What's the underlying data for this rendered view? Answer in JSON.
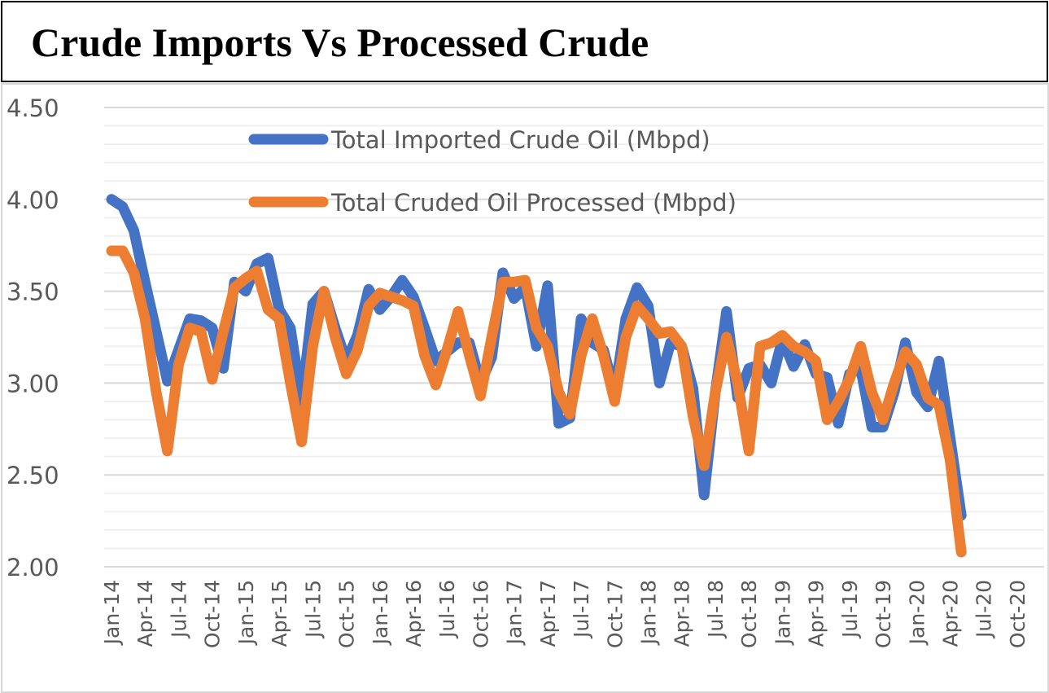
{
  "title": "Crude Imports Vs Processed Crude",
  "chart_data": {
    "type": "line",
    "title": "Crude Imports Vs Processed Crude",
    "xlabel": "",
    "ylabel": "",
    "ylim": [
      2.0,
      4.5
    ],
    "y_major_step": 0.5,
    "y_minor_step": 0.1,
    "y_ticks": [
      "2.00",
      "2.50",
      "3.00",
      "3.50",
      "4.00",
      "4.50"
    ],
    "x_ticks": [
      "Jan-14",
      "Apr-14",
      "Jul-14",
      "Oct-14",
      "Jan-15",
      "Apr-15",
      "Jul-15",
      "Oct-15",
      "Jan-16",
      "Apr-16",
      "Jul-16",
      "Oct-16",
      "Jan-17",
      "Apr-17",
      "Jul-17",
      "Oct-17",
      "Jan-18",
      "Apr-18",
      "Jul-18",
      "Oct-18",
      "Jan-19",
      "Apr-19",
      "Jul-19",
      "Oct-19",
      "Jan-20",
      "Apr-20",
      "Jul-20",
      "Oct-20"
    ],
    "x_start": "Jan-14",
    "x_interval": "monthly",
    "x_range_months": 82,
    "grid": true,
    "legend_position": "top-center",
    "series": [
      {
        "name": "Total Imported Crude Oil (Mbpd)",
        "color": "#4472c4",
        "values": [
          4.0,
          3.96,
          3.83,
          3.55,
          3.28,
          3.01,
          3.18,
          3.35,
          3.34,
          3.3,
          3.08,
          3.55,
          3.5,
          3.65,
          3.68,
          3.4,
          3.3,
          2.9,
          3.43,
          3.5,
          3.3,
          3.12,
          3.26,
          3.51,
          3.4,
          3.47,
          3.56,
          3.47,
          3.3,
          3.12,
          3.17,
          3.22,
          3.22,
          3.0,
          3.14,
          3.6,
          3.46,
          3.52,
          3.2,
          3.53,
          2.78,
          2.81,
          3.35,
          3.22,
          3.18,
          2.95,
          3.35,
          3.52,
          3.42,
          3.0,
          3.22,
          3.2,
          2.97,
          2.39,
          2.95,
          3.39,
          2.92,
          3.08,
          3.1,
          3.0,
          3.24,
          3.09,
          3.21,
          3.05,
          3.03,
          2.78,
          3.05,
          3.08,
          2.76,
          2.76,
          2.95,
          3.22,
          2.95,
          2.87,
          3.12,
          2.7,
          2.28
        ]
      },
      {
        "name": "Total Cruded Oil Processed (Mbpd)",
        "color": "#ed7d31",
        "values": [
          3.72,
          3.72,
          3.6,
          3.35,
          2.95,
          2.63,
          3.1,
          3.3,
          3.28,
          3.02,
          3.28,
          3.52,
          3.57,
          3.61,
          3.4,
          3.35,
          3.0,
          2.68,
          3.2,
          3.5,
          3.25,
          3.05,
          3.18,
          3.42,
          3.49,
          3.47,
          3.45,
          3.42,
          3.15,
          2.99,
          3.18,
          3.39,
          3.15,
          2.93,
          3.25,
          3.55,
          3.55,
          3.56,
          3.3,
          3.2,
          2.95,
          2.83,
          3.15,
          3.35,
          3.15,
          2.9,
          3.25,
          3.42,
          3.35,
          3.27,
          3.28,
          3.2,
          2.82,
          2.55,
          2.95,
          3.25,
          3.0,
          2.63,
          3.2,
          3.22,
          3.26,
          3.2,
          3.17,
          3.12,
          2.8,
          2.9,
          3.02,
          3.2,
          2.95,
          2.8,
          3.0,
          3.17,
          3.1,
          2.92,
          2.88,
          2.58,
          2.08
        ]
      }
    ]
  }
}
